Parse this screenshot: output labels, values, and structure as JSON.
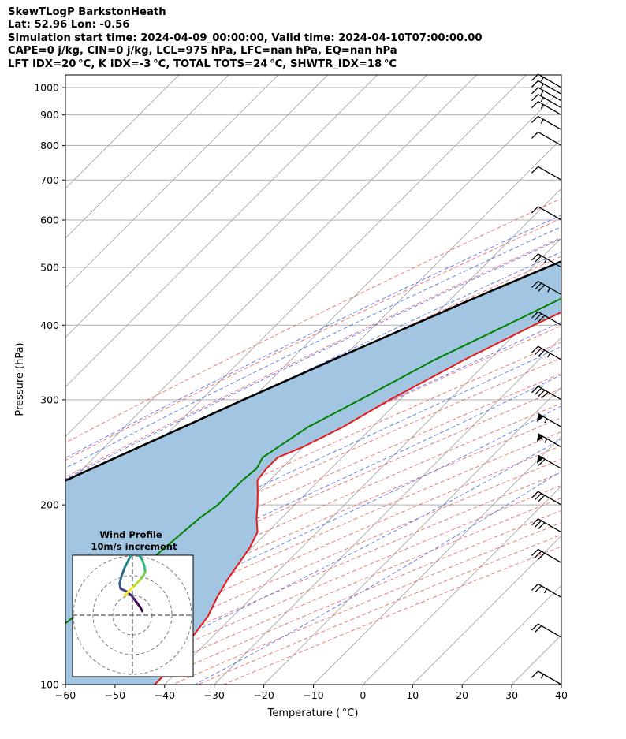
{
  "header": {
    "line1": "SkewTLogP BarkstonHeath",
    "line2": "Lat: 52.96   Lon: -0.56",
    "line3": "Simulation start time: 2024-04-09_00:00:00, Valid time: 2024-04-10T07:00:00.00",
    "line4": "CAPE=0 j/kg, CIN=0 j/kg, LCL=975 hPa, LFC=nan hPa, EQ=nan hPa",
    "line5": "LFT IDX=20 °C, K IDX=-3 °C, TOTAL TOTS=24 °C, SHWTR_IDX=18 °C"
  },
  "chart_data": {
    "type": "line",
    "title": "SkewTLogP BarkstonHeath",
    "xlabel": "Temperature ( °C)",
    "ylabel": "Pressure (hPa)",
    "xlim": [
      -60,
      40
    ],
    "ylim": [
      1050,
      100
    ],
    "y_scale": "log",
    "skew": true,
    "grid": true,
    "x_ticks": [
      -60,
      -50,
      -40,
      -30,
      -20,
      -10,
      0,
      10,
      20,
      30,
      40
    ],
    "x_tick_labels": [
      "−60",
      "−50",
      "−40",
      "−30",
      "−20",
      "−10",
      "0",
      "10",
      "20",
      "30",
      "40"
    ],
    "y_ticks": [
      1000,
      900,
      800,
      700,
      600,
      500,
      400,
      300,
      200,
      100
    ],
    "y_tick_labels": [
      "1000",
      "900",
      "800",
      "700",
      "600",
      "500",
      "400",
      "300",
      "200",
      "100"
    ],
    "series": [
      {
        "color": "#e41a1c",
        "pressure": [
          1005,
          990,
          975,
          950,
          920,
          900,
          850,
          800,
          750,
          700,
          650,
          600,
          550,
          500,
          450,
          400,
          350,
          300,
          270,
          250,
          240,
          230,
          220,
          210,
          200,
          190,
          180,
          170,
          160,
          150,
          140,
          130,
          120,
          110,
          105,
          100
        ],
        "temperature": [
          4,
          6,
          6.5,
          5.5,
          4,
          3,
          1,
          -1.5,
          -4,
          -7,
          -10.5,
          -14.5,
          -19.5,
          -25,
          -31,
          -38,
          -45,
          -52,
          -56,
          -60,
          -63,
          -63,
          -62.5,
          -60,
          -57.5,
          -55,
          -52,
          -50.5,
          -49.5,
          -48.5,
          -47,
          -45,
          -44,
          -44,
          -42,
          -42
        ]
      },
      {
        "color": "#008000",
        "pressure": [
          1005,
          990,
          975,
          950,
          920,
          900,
          850,
          800,
          760,
          720,
          700,
          650,
          600,
          550,
          500,
          450,
          400,
          350,
          300,
          270,
          250,
          240,
          230,
          220,
          210,
          200,
          190,
          180,
          170,
          160,
          150,
          140,
          130,
          120,
          110,
          100
        ],
        "temperature": [
          2.5,
          1.5,
          0.5,
          -0.5,
          -1.5,
          -3.5,
          -10.5,
          -19.5,
          -22,
          -14,
          -11.5,
          -13.5,
          -18.5,
          -24.5,
          -30.5,
          -37,
          -43.5,
          -51,
          -58,
          -63,
          -65,
          -66,
          -65,
          -65.5,
          -65.5,
          -65.5,
          -66.5,
          -67,
          -67.5,
          -68,
          -69,
          -70.5,
          -72,
          -73,
          -73.5,
          -74
        ]
      },
      {
        "color": "#000000",
        "pressure": [
          1005,
          990,
          975,
          950,
          900,
          850,
          800,
          750,
          700,
          650,
          600,
          550,
          500,
          450,
          400,
          350,
          300,
          250,
          200,
          150,
          120,
          100
        ],
        "temperature": [
          3.5,
          2.5,
          1.5,
          -0.5,
          -4,
          -8,
          -12.5,
          -17,
          -22,
          -27.5,
          -33.5,
          -40,
          -47,
          -54.5,
          -62.5,
          -71.5,
          -81.5,
          -93,
          -107,
          -124.5,
          -138,
          -149
        ]
      }
    ],
    "shading": "between temperature and parcel profile",
    "wind_barbs": {
      "pressure": [
        1000,
        975,
        950,
        925,
        900,
        850,
        800,
        700,
        600,
        500,
        450,
        400,
        350,
        300,
        270,
        250,
        230,
        200,
        180,
        160,
        140,
        120,
        100
      ],
      "speed_kt": [
        15,
        15,
        15,
        15,
        15,
        15,
        10,
        10,
        10,
        25,
        35,
        30,
        35,
        40,
        55,
        55,
        60,
        30,
        30,
        30,
        25,
        20,
        15
      ]
    },
    "hodograph": {
      "title": "Wind Profile",
      "subtitle": "10m/s increment",
      "u": [
        5,
        4,
        2.5,
        1,
        -0.5,
        -3,
        -6,
        -6.5,
        -5.5,
        -4,
        -2.5,
        -1,
        0.5,
        3,
        5,
        6,
        6.5,
        5.5,
        4,
        2,
        0,
        -2,
        -4
      ],
      "v": [
        -2,
        -4,
        -6,
        -8,
        -10,
        -12,
        -13.5,
        -16,
        -20,
        -24,
        -27,
        -30,
        -32,
        -31,
        -28,
        -25,
        -22,
        -20,
        -18,
        -16,
        -14,
        -12,
        -10
      ]
    }
  }
}
